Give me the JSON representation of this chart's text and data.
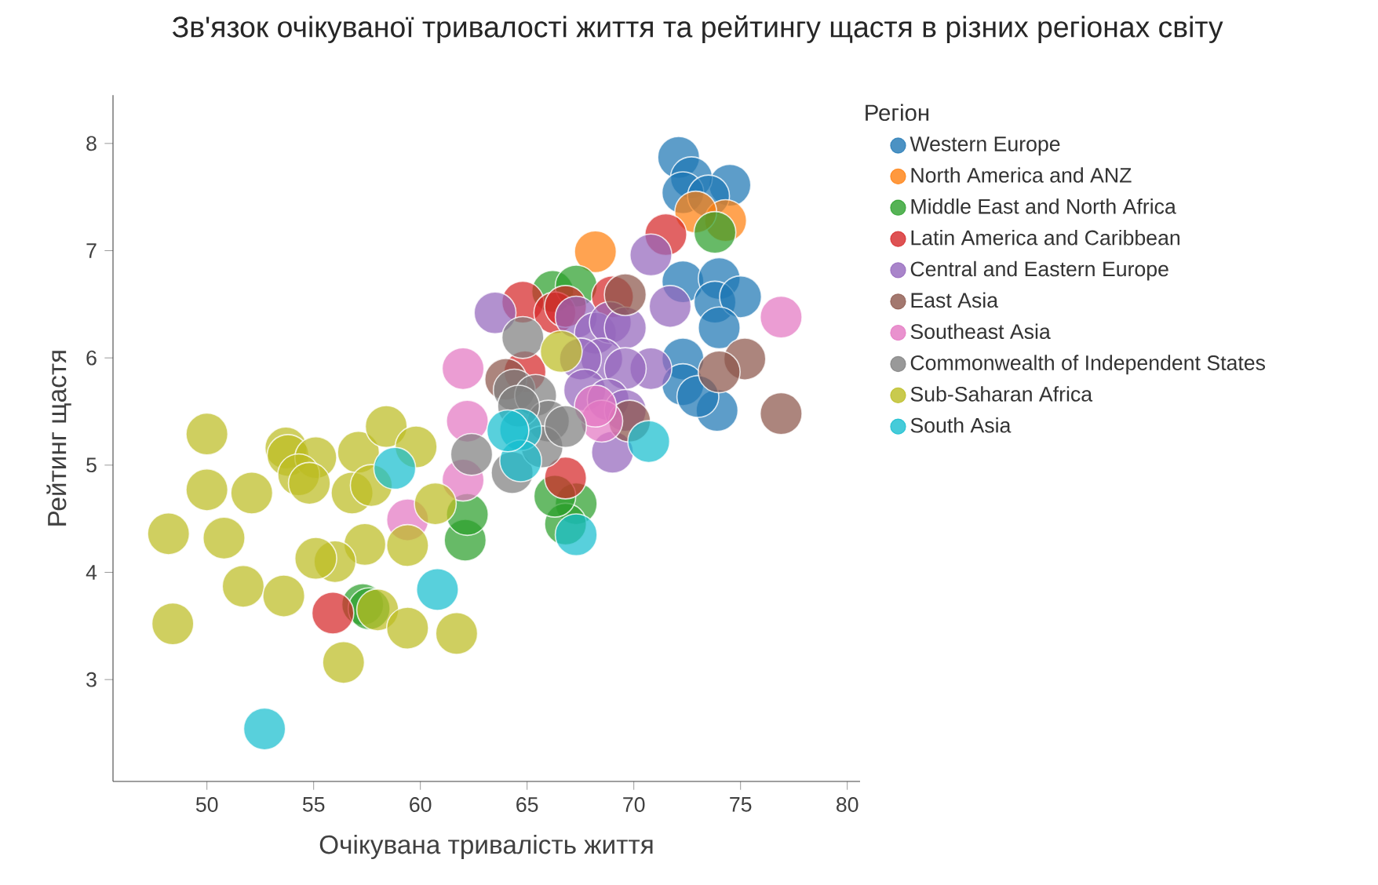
{
  "chart_data": {
    "type": "scatter",
    "title": "Зв'язок очікуваної тривалості життя та рейтингу щастя в різних регіонах світу",
    "xlabel": "Очікувана тривалість життя",
    "ylabel": "Рейтинг щастя",
    "legend_title": "Регіон",
    "legend": "right",
    "marker": "circle",
    "xlim": [
      45.6,
      80.6
    ],
    "ylim": [
      2.05,
      8.45
    ],
    "xticks": [
      50,
      55,
      60,
      65,
      70,
      75,
      80
    ],
    "yticks": [
      3,
      4,
      5,
      6,
      7,
      8
    ],
    "series": [
      {
        "name": "Western Europe",
        "color": "#1f77b4",
        "x": [
          72.1,
          74.5,
          72.7,
          72.3,
          73.5,
          72.3,
          74.0,
          73.8,
          75.0,
          74.0,
          72.3,
          72.3,
          73.9,
          73.0
        ],
        "values": [
          7.87,
          7.61,
          7.68,
          7.54,
          7.51,
          6.71,
          6.74,
          6.52,
          6.57,
          6.28,
          5.99,
          5.75,
          5.51,
          5.64
        ]
      },
      {
        "name": "North America and ANZ",
        "color": "#ff7f0e",
        "x": [
          68.2,
          74.3,
          72.9
        ],
        "values": [
          6.99,
          7.28,
          7.36
        ]
      },
      {
        "name": "Middle East and North Africa",
        "color": "#2ca02c",
        "x": [
          73.8,
          66.2,
          67.3,
          62.1,
          62.2,
          57.3,
          57.6,
          67.3,
          66.8,
          66.3
        ],
        "values": [
          7.17,
          6.62,
          6.67,
          4.3,
          4.54,
          3.7,
          3.66,
          4.64,
          4.45,
          4.71
        ]
      },
      {
        "name": "Latin America and Caribbean",
        "color": "#d62728",
        "x": [
          55.9,
          66.8,
          71.5,
          64.8,
          66.3,
          66.8,
          69.0,
          64.9
        ],
        "values": [
          3.62,
          4.88,
          7.15,
          6.52,
          6.42,
          6.48,
          6.57,
          5.87
        ]
      },
      {
        "name": "Central and Eastern Europe",
        "color": "#9467bd",
        "x": [
          63.5,
          70.8,
          71.7,
          70.8,
          67.3,
          68.2,
          68.9,
          69.6,
          68.5,
          67.5,
          69.6,
          67.7,
          68.8,
          69.0,
          69.6
        ],
        "values": [
          6.42,
          6.96,
          6.48,
          5.9,
          6.38,
          6.23,
          6.33,
          6.28,
          5.99,
          5.99,
          5.9,
          5.7,
          5.61,
          5.12,
          5.51
        ]
      },
      {
        "name": "East Asia",
        "color": "#8c564b",
        "x": [
          76.9,
          75.2,
          74.0,
          69.6,
          64.0,
          69.8
        ],
        "values": [
          5.48,
          5.99,
          5.87,
          6.59,
          5.8,
          5.41
        ]
      },
      {
        "name": "Southeast Asia",
        "color": "#e377c2",
        "x": [
          76.9,
          62.0,
          62.2,
          62.0,
          59.4,
          68.5,
          68.2
        ],
        "values": [
          6.38,
          5.9,
          5.41,
          4.86,
          4.49,
          5.41,
          5.55
        ]
      },
      {
        "name": "Commonwealth of Independent States",
        "color": "#7f7f7f",
        "x": [
          64.8,
          64.4,
          65.4,
          66.0,
          62.4,
          64.3,
          65.7,
          66.8,
          64.6
        ],
        "values": [
          6.19,
          5.7,
          5.65,
          5.41,
          5.1,
          4.93,
          5.17,
          5.36,
          5.55
        ]
      },
      {
        "name": "Sub-Saharan Africa",
        "color": "#bcbd22",
        "x": [
          50.0,
          50.0,
          52.1,
          48.2,
          50.8,
          51.7,
          53.6,
          48.4,
          53.7,
          53.8,
          55.1,
          54.3,
          54.8,
          57.1,
          58.4,
          56.8,
          57.4,
          56.0,
          55.1,
          56.4,
          58.0,
          59.4,
          59.4,
          59.8,
          60.7,
          61.7,
          57.7,
          66.6
        ],
        "values": [
          5.29,
          4.77,
          4.74,
          4.36,
          4.32,
          3.87,
          3.78,
          3.52,
          5.16,
          5.09,
          5.07,
          4.91,
          4.83,
          5.12,
          5.36,
          4.74,
          4.26,
          4.1,
          4.13,
          3.16,
          3.65,
          3.48,
          4.25,
          5.17,
          4.64,
          3.43,
          4.81,
          6.06
        ]
      },
      {
        "name": "South Asia",
        "color": "#17becf",
        "x": [
          52.7,
          60.8,
          58.8,
          64.7,
          64.7,
          64.1,
          70.7,
          67.3
        ],
        "values": [
          2.54,
          3.84,
          4.97,
          5.33,
          5.04,
          5.32,
          5.22,
          4.35
        ]
      }
    ]
  }
}
